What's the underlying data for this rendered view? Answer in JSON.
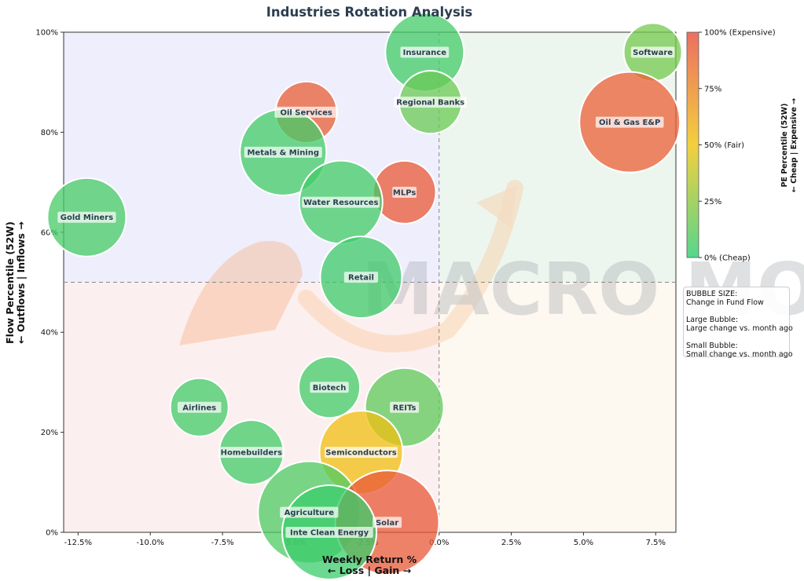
{
  "chart_data": {
    "type": "scatter",
    "title": "Industries Rotation Analysis",
    "xlabel": "Weekly Return %",
    "xlabel_sub": "← Loss | Gain →",
    "ylabel": "Flow Percentile (52W)",
    "ylabel_sub": "← Outflows | Inflows →",
    "xlim": [
      -13.0,
      8.2
    ],
    "ylim": [
      0,
      100
    ],
    "x_ticks": [
      -12.5,
      -10.0,
      -7.5,
      -5.0,
      -2.5,
      0.0,
      2.5,
      5.0,
      7.5
    ],
    "x_tick_labels": [
      "-12.5%",
      "-10.0%",
      "-7.5%",
      "-5.0%",
      "-2.5%",
      "0.0%",
      "2.5%",
      "5.0%",
      "7.5%"
    ],
    "y_ticks": [
      0,
      20,
      40,
      60,
      80,
      100
    ],
    "y_tick_labels": [
      "0%",
      "20%",
      "40%",
      "60%",
      "80%",
      "100%"
    ],
    "reference_lines": {
      "x": 0,
      "y": 50
    },
    "quadrant_colors": {
      "top_left": "#eeeefc",
      "top_right": "#edf6ee",
      "bottom_left": "#fcefef",
      "bottom_right": "#fdf8f0"
    },
    "colorbar": {
      "title": "PE Percentile (52W)",
      "subtitle": "← Cheap | Expensive →",
      "ticks": [
        0,
        25,
        50,
        75,
        100
      ],
      "tick_labels": [
        "0% (Cheap)",
        "25%",
        "50% (Fair)",
        "75%",
        "100% (Expensive)"
      ],
      "colors": [
        "#2ecc71",
        "#f1c40f",
        "#e74c3c"
      ]
    },
    "size_legend": [
      "BUBBLE SIZE:",
      "Change in Fund Flow",
      "",
      "Large Bubble:",
      "Large change vs. month ago",
      "",
      "Small Bubble:",
      "Small change vs. month ago"
    ],
    "watermark": "MACRO MOOVER",
    "points": [
      {
        "name": "Insurance",
        "x": -0.5,
        "y": 96,
        "pe": 5,
        "size": 50
      },
      {
        "name": "Software",
        "x": 7.4,
        "y": 96,
        "pe": 18,
        "size": 37
      },
      {
        "name": "Regional Banks",
        "x": -0.3,
        "y": 86,
        "pe": 15,
        "size": 40
      },
      {
        "name": "Oil & Gas E&P",
        "x": 6.6,
        "y": 82,
        "pe": 92,
        "size": 64
      },
      {
        "name": "Oil Services",
        "x": -4.6,
        "y": 84,
        "pe": 93,
        "size": 39
      },
      {
        "name": "Metals & Mining",
        "x": -5.4,
        "y": 76,
        "pe": 5,
        "size": 55
      },
      {
        "name": "MLPs",
        "x": -1.2,
        "y": 68,
        "pe": 95,
        "size": 40
      },
      {
        "name": "Water Resources",
        "x": -3.4,
        "y": 66,
        "pe": 5,
        "size": 53
      },
      {
        "name": "Gold Miners",
        "x": -12.2,
        "y": 63,
        "pe": 6,
        "size": 50
      },
      {
        "name": "Retail",
        "x": -2.7,
        "y": 51,
        "pe": 4,
        "size": 52
      },
      {
        "name": "Biotech",
        "x": -3.8,
        "y": 29,
        "pe": 5,
        "size": 39
      },
      {
        "name": "Airlines",
        "x": -8.3,
        "y": 25,
        "pe": 5,
        "size": 37
      },
      {
        "name": "REITs",
        "x": -1.2,
        "y": 25,
        "pe": 12,
        "size": 50
      },
      {
        "name": "Homebuilders",
        "x": -6.5,
        "y": 16,
        "pe": 5,
        "size": 41
      },
      {
        "name": "Semiconductors",
        "x": -2.7,
        "y": 16,
        "pe": 52,
        "size": 53
      },
      {
        "name": "Agriculture",
        "x": -4.5,
        "y": 4,
        "pe": 8,
        "size": 65
      },
      {
        "name": "Solar",
        "x": -1.8,
        "y": 2,
        "pe": 95,
        "size": 66
      },
      {
        "name": "Inte Clean Energy",
        "x": -3.8,
        "y": 0,
        "pe": 3,
        "size": 60
      }
    ]
  }
}
